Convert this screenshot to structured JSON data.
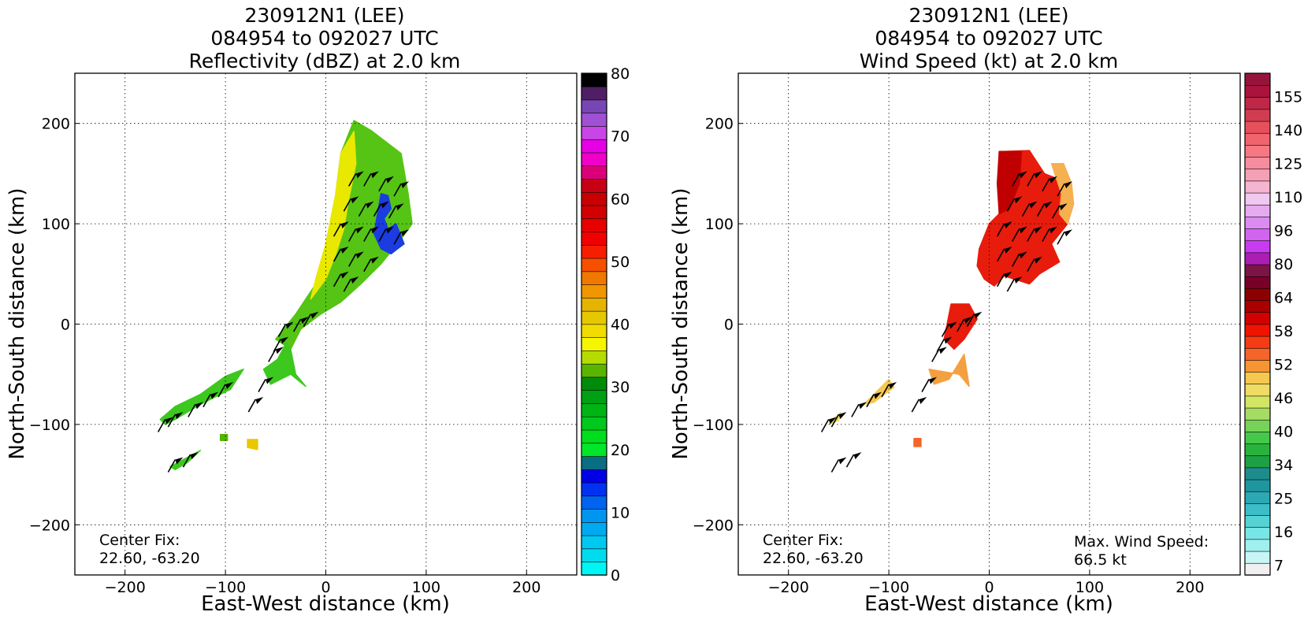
{
  "chart_data": [
    {
      "type": "heatmap",
      "title": [
        "230912N1 (LEE)",
        "084954 to 092027 UTC",
        "Reflectivity (dBZ) at 2.0 km"
      ],
      "xlabel": "East-West distance (km)",
      "ylabel": "North-South distance (km)",
      "xlim": [
        -250,
        250
      ],
      "ylim": [
        -250,
        250
      ],
      "xticks": [
        -200,
        -100,
        0,
        100,
        200
      ],
      "yticks": [
        -200,
        -100,
        0,
        100,
        200
      ],
      "xtick_labels": [
        "−200",
        "−100",
        "0",
        "100",
        "200"
      ],
      "ytick_labels": [
        "−200",
        "−100",
        "0",
        "100",
        "200"
      ],
      "grid": true,
      "annotations": {
        "center_fix_label": "Center Fix:",
        "center_fix_value": "22.60, -63.20"
      },
      "colorbar": {
        "colors": [
          "#00f5f5",
          "#00dced",
          "#00c8f0",
          "#00aaf0",
          "#0096f0",
          "#0064f0",
          "#0032f0",
          "#0000e6",
          "#0a6e82",
          "#00e628",
          "#00dc1e",
          "#00c81e",
          "#00b414",
          "#00a014",
          "#008c0a",
          "#5ab400",
          "#b4dc00",
          "#f5f500",
          "#f0dc00",
          "#e6c800",
          "#e6b400",
          "#f09600",
          "#f07800",
          "#f55000",
          "#f51e00",
          "#f00000",
          "#e60000",
          "#d20000",
          "#c80000",
          "#c80014",
          "#dc0078",
          "#f000c8",
          "#e600e6",
          "#c846e6",
          "#a050d2",
          "#7846b4",
          "#501e64",
          "#000000"
        ],
        "ticks": [
          0,
          10,
          20,
          30,
          40,
          50,
          60,
          70,
          80
        ],
        "range": [
          0,
          80
        ]
      },
      "echoes": [
        {
          "polygon": [
            [
              28,
              203
            ],
            [
              45,
              193
            ],
            [
              75,
              170
            ],
            [
              82,
              130
            ],
            [
              86,
              100
            ],
            [
              75,
              85
            ],
            [
              55,
              60
            ],
            [
              35,
              40
            ],
            [
              15,
              22
            ],
            [
              -5,
              10
            ],
            [
              -25,
              -5
            ],
            [
              -35,
              -25
            ],
            [
              -50,
              -15
            ],
            [
              -30,
              10
            ],
            [
              -10,
              40
            ],
            [
              5,
              80
            ],
            [
              10,
              130
            ],
            [
              15,
              170
            ]
          ],
          "fill": "#55c415"
        },
        {
          "polygon": [
            [
              15,
              170
            ],
            [
              28,
              192
            ],
            [
              30,
              160
            ],
            [
              22,
              120
            ],
            [
              18,
              95
            ],
            [
              10,
              70
            ],
            [
              0,
              45
            ],
            [
              -15,
              25
            ],
            [
              -10,
              45
            ],
            [
              0,
              80
            ],
            [
              10,
              130
            ]
          ],
          "fill": "#e8e800"
        },
        {
          "polygon": [
            [
              55,
              130
            ],
            [
              62,
              128
            ],
            [
              65,
              115
            ],
            [
              58,
              105
            ],
            [
              62,
              95
            ],
            [
              70,
              100
            ],
            [
              78,
              80
            ],
            [
              65,
              70
            ],
            [
              55,
              75
            ],
            [
              48,
              90
            ]
          ],
          "fill": "#1a3ce0"
        },
        {
          "polygon": [
            [
              -45,
              -10
            ],
            [
              -35,
              -25
            ],
            [
              -30,
              -50
            ],
            [
              -20,
              -62
            ],
            [
              -35,
              -50
            ],
            [
              -55,
              -60
            ],
            [
              -62,
              -45
            ],
            [
              -48,
              -35
            ],
            [
              -40,
              -20
            ]
          ],
          "fill": "#3cc81e"
        },
        {
          "polygon": [
            [
              -165,
              -95
            ],
            [
              -150,
              -82
            ],
            [
              -125,
              -70
            ],
            [
              -100,
              -52
            ],
            [
              -82,
              -45
            ],
            [
              -95,
              -65
            ],
            [
              -125,
              -80
            ],
            [
              -150,
              -95
            ],
            [
              -160,
              -100
            ]
          ],
          "fill": "#3cc81e"
        },
        {
          "polygon": [
            [
              -155,
              -142
            ],
            [
              -140,
              -134
            ],
            [
              -125,
              -126
            ],
            [
              -138,
              -138
            ],
            [
              -150,
              -145
            ]
          ],
          "fill": "#3cc81e"
        },
        {
          "polygon": [
            [
              -78,
              -115
            ],
            [
              -68,
              -115
            ],
            [
              -68,
              -125
            ],
            [
              -78,
              -123
            ]
          ],
          "fill": "#e8c800"
        },
        {
          "polygon": [
            [
              -105,
              -110
            ],
            [
              -98,
              -110
            ],
            [
              -98,
              -116
            ],
            [
              -105,
              -116
            ]
          ],
          "fill": "#55b400"
        }
      ]
    },
    {
      "type": "heatmap",
      "title": [
        "230912N1 (LEE)",
        "084954 to 092027 UTC",
        "Wind Speed (kt) at 2.0 km"
      ],
      "xlabel": "East-West distance (km)",
      "ylabel": "North-South distance (km)",
      "xlim": [
        -250,
        250
      ],
      "ylim": [
        -250,
        250
      ],
      "xticks": [
        -200,
        -100,
        0,
        100,
        200
      ],
      "yticks": [
        -200,
        -100,
        0,
        100,
        200
      ],
      "xtick_labels": [
        "−200",
        "−100",
        "0",
        "100",
        "200"
      ],
      "ytick_labels": [
        "−200",
        "−100",
        "0",
        "100",
        "200"
      ],
      "grid": true,
      "annotations": {
        "center_fix_label": "Center Fix:",
        "center_fix_value": "22.60, -63.20",
        "max_wind_label": "Max. Wind Speed:",
        "max_wind_value": "66.5 kt"
      },
      "colorbar": {
        "colors": [
          "#f0f0f0",
          "#c8f5f5",
          "#a0f0f0",
          "#78e6e6",
          "#55d2d2",
          "#3cbec8",
          "#2ca8b4",
          "#1e96a0",
          "#1e8c8c",
          "#1ea046",
          "#28b43c",
          "#46c84b",
          "#78d25a",
          "#a5dc64",
          "#d2e664",
          "#f0dc64",
          "#f5c850",
          "#f59632",
          "#f56428",
          "#f53c14",
          "#f01400",
          "#d20000",
          "#aa0000",
          "#8c0000",
          "#780028",
          "#7d1446",
          "#aa1eb4",
          "#c83cf0",
          "#d264f0",
          "#dc8cf0",
          "#e6aaf0",
          "#f0c8f0",
          "#f5b4d2",
          "#f5a0b4",
          "#f58ca0",
          "#f57882",
          "#f0646e",
          "#e6505a",
          "#d23c50",
          "#be2846",
          "#aa143c",
          "#96143c"
        ],
        "tick_labels": [
          "7",
          "16",
          "25",
          "34",
          "40",
          "46",
          "52",
          "58",
          "64",
          "80",
          "96",
          "110",
          "125",
          "140",
          "155"
        ],
        "range": [
          0,
          165
        ]
      },
      "echoes": [
        {
          "polygon": [
            [
              10,
              172
            ],
            [
              40,
              173
            ],
            [
              55,
              150
            ],
            [
              80,
              140
            ],
            [
              84,
              120
            ],
            [
              78,
              100
            ],
            [
              62,
              80
            ],
            [
              70,
              62
            ],
            [
              50,
              50
            ],
            [
              40,
              40
            ],
            [
              15,
              48
            ],
            [
              5,
              38
            ],
            [
              -5,
              45
            ],
            [
              -12,
              58
            ],
            [
              -10,
              75
            ],
            [
              0,
              100
            ],
            [
              10,
              110
            ]
          ],
          "fill": "#e81c0c"
        },
        {
          "polygon": [
            [
              10,
              172
            ],
            [
              32,
              172
            ],
            [
              30,
              140
            ],
            [
              20,
              115
            ],
            [
              10,
              110
            ],
            [
              8,
              140
            ]
          ],
          "fill": "#c00000"
        },
        {
          "polygon": [
            [
              62,
              160
            ],
            [
              74,
              160
            ],
            [
              82,
              140
            ],
            [
              84,
              120
            ],
            [
              78,
              100
            ],
            [
              70,
              110
            ],
            [
              72,
              130
            ]
          ],
          "fill": "#f5b050"
        },
        {
          "polygon": [
            [
              -38,
              20
            ],
            [
              -20,
              20
            ],
            [
              -12,
              5
            ],
            [
              -25,
              -15
            ],
            [
              -35,
              -25
            ],
            [
              -45,
              -15
            ]
          ],
          "fill": "#e81c0c"
        },
        {
          "polygon": [
            [
              -30,
              -50
            ],
            [
              -20,
              -62
            ],
            [
              -25,
              -30
            ],
            [
              -40,
              -55
            ],
            [
              -55,
              -60
            ],
            [
              -60,
              -45
            ]
          ],
          "fill": "#f5a040"
        },
        {
          "polygon": [
            [
              -125,
              -80
            ],
            [
              -100,
              -55
            ],
            [
              -95,
              -63
            ],
            [
              -115,
              -78
            ]
          ],
          "fill": "#f5c850"
        },
        {
          "polygon": [
            [
              -160,
              -100
            ],
            [
              -148,
              -88
            ],
            [
              -150,
              -96
            ]
          ],
          "fill": "#f0dc64"
        },
        {
          "polygon": [
            [
              -75,
              -114
            ],
            [
              -68,
              -114
            ],
            [
              -68,
              -122
            ],
            [
              -75,
              -122
            ]
          ],
          "fill": "#f56428"
        }
      ]
    }
  ]
}
